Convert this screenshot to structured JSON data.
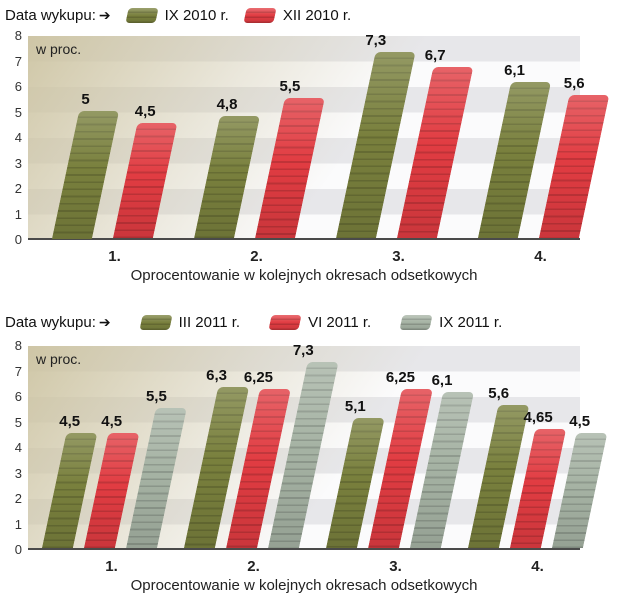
{
  "chart_data": [
    {
      "type": "bar",
      "legend_title": "Data wykupu:",
      "legend_arrow": "➔",
      "unit_label": "w proc.",
      "xlabel": "Oprocentowanie w kolejnych okresach odsetkowych",
      "categories": [
        "1.",
        "2.",
        "3.",
        "4."
      ],
      "y_ticks": [
        "0",
        "1",
        "2",
        "3",
        "4",
        "5",
        "6",
        "7",
        "8"
      ],
      "ylim": [
        0,
        8
      ],
      "grid": "horizontal-bands",
      "legend_position": "top-left",
      "series": [
        {
          "name": "IX 2010 r.",
          "color": "#79803d",
          "values": [
            5,
            4.8,
            7.3,
            6.1
          ],
          "labels": [
            "5",
            "4,8",
            "7,3",
            "6,1"
          ]
        },
        {
          "name": "XII 2010 r.",
          "color": "#e13c42",
          "values": [
            4.5,
            5.5,
            6.7,
            5.6
          ],
          "labels": [
            "4,5",
            "5,5",
            "6,7",
            "5,6"
          ]
        }
      ]
    },
    {
      "type": "bar",
      "legend_title": "Data wykupu:",
      "legend_arrow": "➔",
      "unit_label": "w proc.",
      "xlabel": "Oprocentowanie w kolejnych okresach odsetkowych",
      "categories": [
        "1.",
        "2.",
        "3.",
        "4."
      ],
      "y_ticks": [
        "0",
        "1",
        "2",
        "3",
        "4",
        "5",
        "6",
        "7",
        "8"
      ],
      "ylim": [
        0,
        8
      ],
      "grid": "horizontal-bands",
      "legend_position": "top-left",
      "series": [
        {
          "name": "III 2011 r.",
          "color": "#79803d",
          "values": [
            4.5,
            6.3,
            5.1,
            5.6
          ],
          "labels": [
            "4,5",
            "6,3",
            "5,1",
            "5,6"
          ]
        },
        {
          "name": "VI 2011 r.",
          "color": "#e13c42",
          "values": [
            4.5,
            6.25,
            6.25,
            4.65
          ],
          "labels": [
            "4,5",
            "6,25",
            "6,25",
            "4,65"
          ]
        },
        {
          "name": "IX 2011 r.",
          "color": "#a6b3a4",
          "values": [
            5.5,
            7.3,
            6.1,
            4.5
          ],
          "labels": [
            "5,5",
            "7,3",
            "6,1",
            "4,5"
          ]
        }
      ]
    }
  ]
}
